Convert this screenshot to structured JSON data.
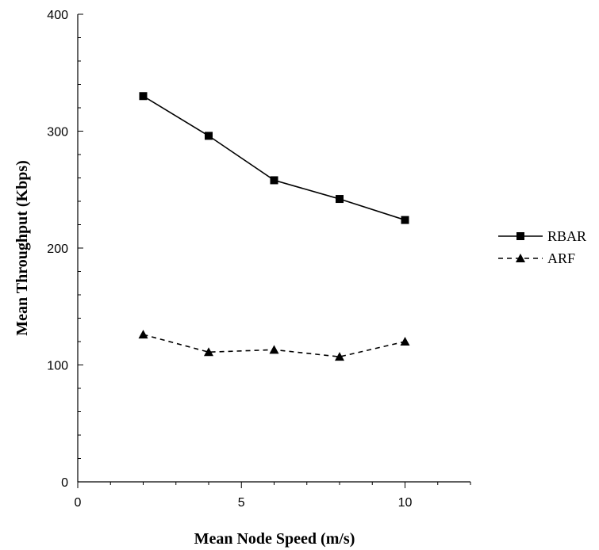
{
  "chart_data": {
    "type": "line",
    "title": "",
    "xlabel": "Mean Node Speed (m/s)",
    "ylabel": "Mean Throughput (Kbps)",
    "xlim": [
      0,
      12
    ],
    "ylim": [
      0,
      400
    ],
    "x_ticks_major": [
      0,
      5,
      10
    ],
    "y_ticks_major": [
      0,
      100,
      200,
      300,
      400
    ],
    "grid": false,
    "legend_position": "right",
    "x": [
      2,
      4,
      6,
      8,
      10
    ],
    "series": [
      {
        "name": "RBAR",
        "marker": "square",
        "line_style": "solid",
        "color": "#000000",
        "values": [
          330,
          296,
          258,
          242,
          224
        ]
      },
      {
        "name": "ARF",
        "marker": "triangle",
        "line_style": "dashed",
        "color": "#000000",
        "values": [
          126,
          111,
          113,
          107,
          120
        ]
      }
    ]
  }
}
